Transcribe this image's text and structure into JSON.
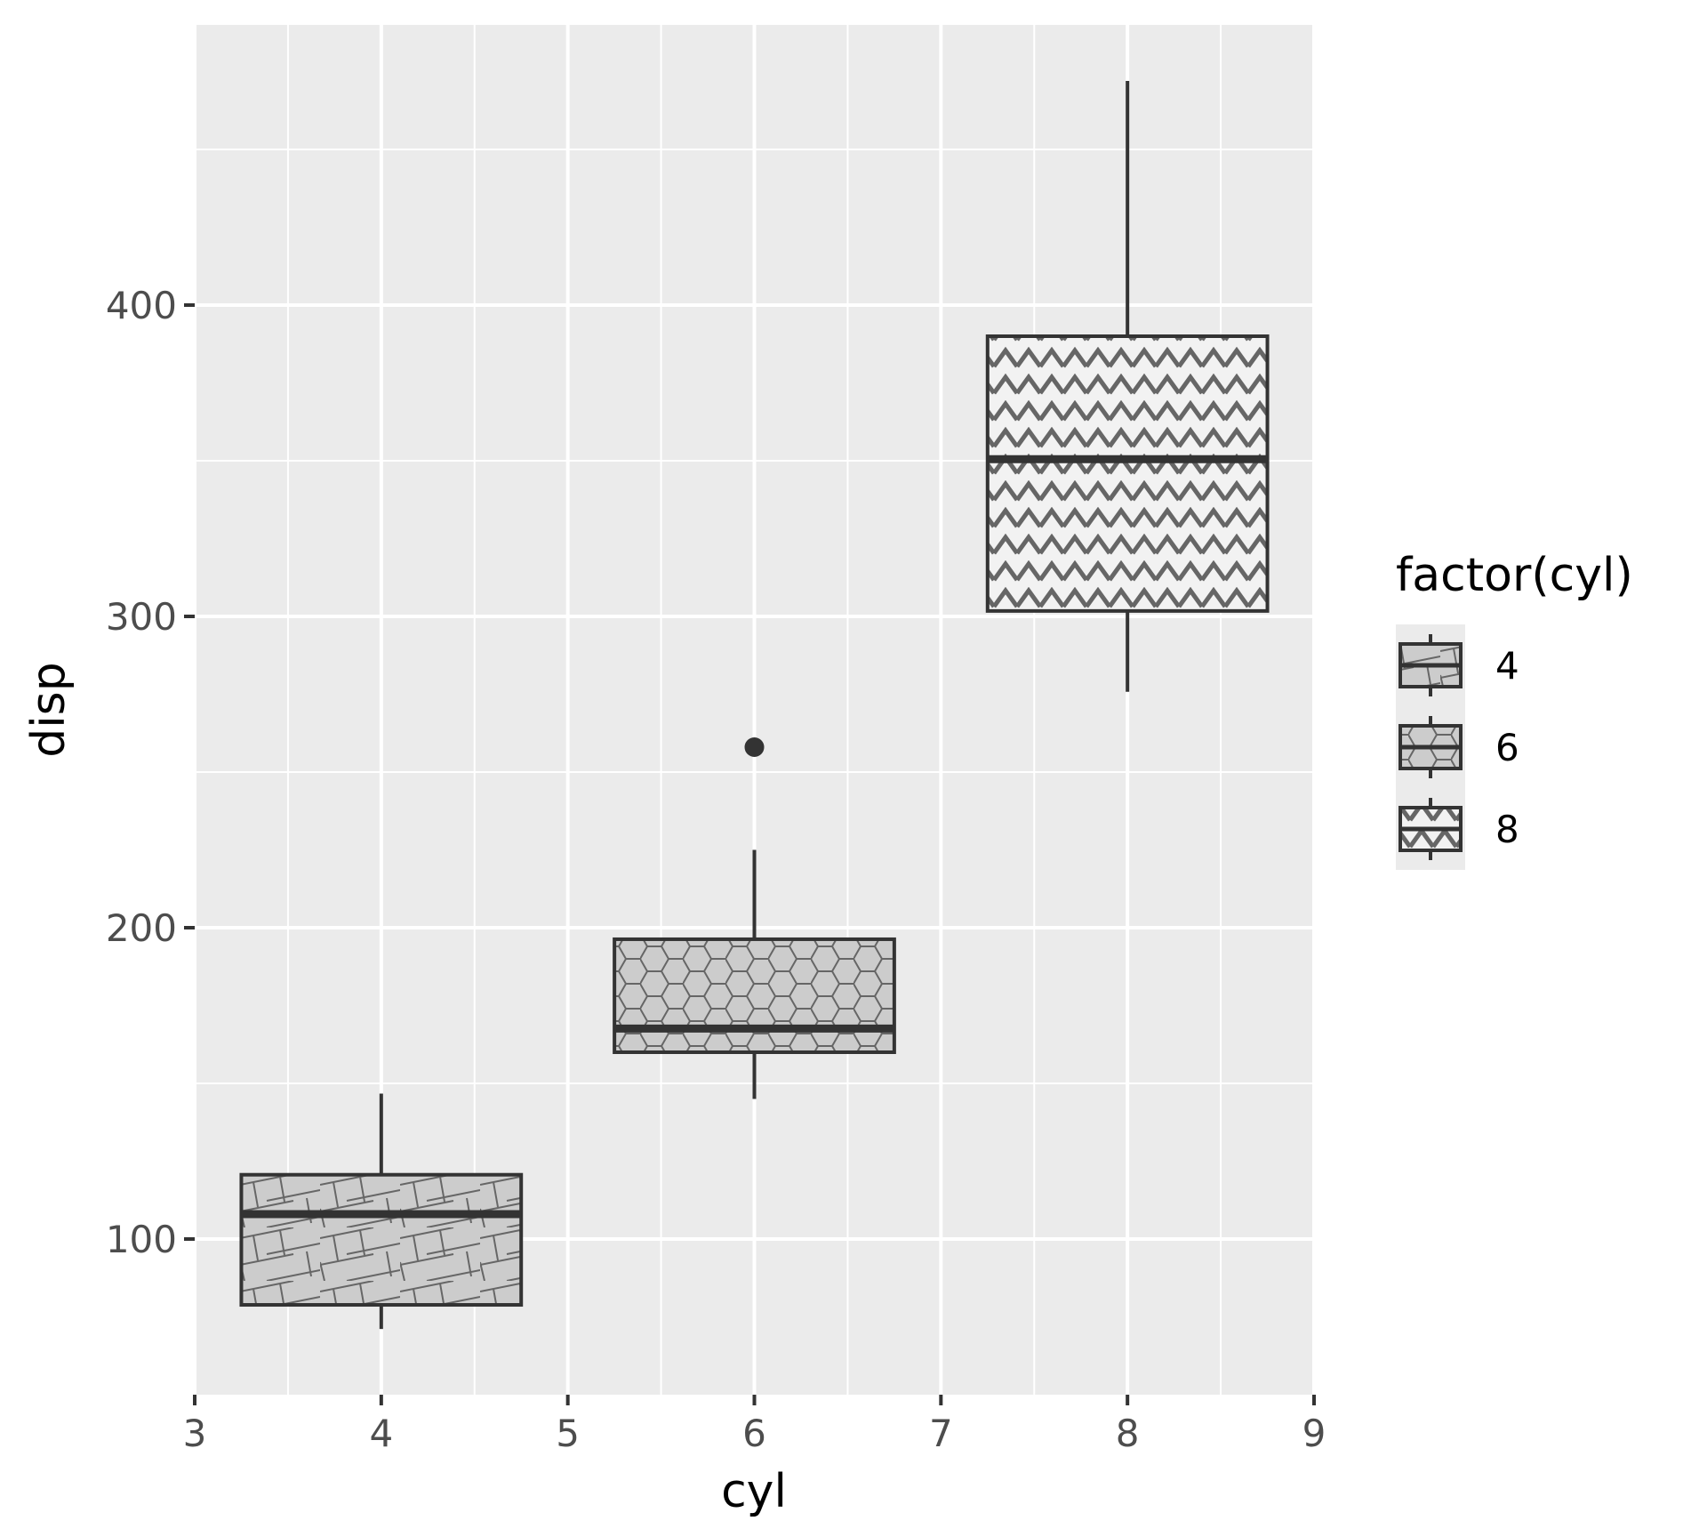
{
  "chart_data": {
    "type": "box",
    "title": "",
    "xlabel": "cyl",
    "ylabel": "disp",
    "xlim": [
      3,
      9
    ],
    "ylim": [
      50,
      490
    ],
    "x_ticks": [
      3,
      4,
      5,
      6,
      7,
      8,
      9
    ],
    "y_ticks": [
      100,
      200,
      300,
      400
    ],
    "grid": true,
    "legend_position": "right",
    "legend": {
      "title": "factor(cyl)",
      "entries": [
        {
          "label": "4",
          "pattern": "weave"
        },
        {
          "label": "6",
          "pattern": "hexagons"
        },
        {
          "label": "8",
          "pattern": "zigzag"
        }
      ]
    },
    "boxes": [
      {
        "group": "4",
        "x": 4,
        "lower_whisker": 71.1,
        "q1": 78.85,
        "median": 108,
        "q3": 120.65,
        "upper_whisker": 146.7,
        "outliers": []
      },
      {
        "group": "6",
        "x": 6,
        "lower_whisker": 145,
        "q1": 160,
        "median": 167.6,
        "q3": 196.3,
        "upper_whisker": 225,
        "outliers": [
          258
        ]
      },
      {
        "group": "8",
        "x": 8,
        "lower_whisker": 275.8,
        "q1": 301.75,
        "median": 350.5,
        "q3": 390,
        "upper_whisker": 472,
        "outliers": []
      }
    ],
    "colors": {
      "panel_background": "#ebebeb",
      "grid_line": "#ffffff",
      "box_fill": "#cccccc",
      "box_outline": "#333333",
      "pattern_line": "#666666",
      "tick_label": "#4d4d4d"
    }
  }
}
